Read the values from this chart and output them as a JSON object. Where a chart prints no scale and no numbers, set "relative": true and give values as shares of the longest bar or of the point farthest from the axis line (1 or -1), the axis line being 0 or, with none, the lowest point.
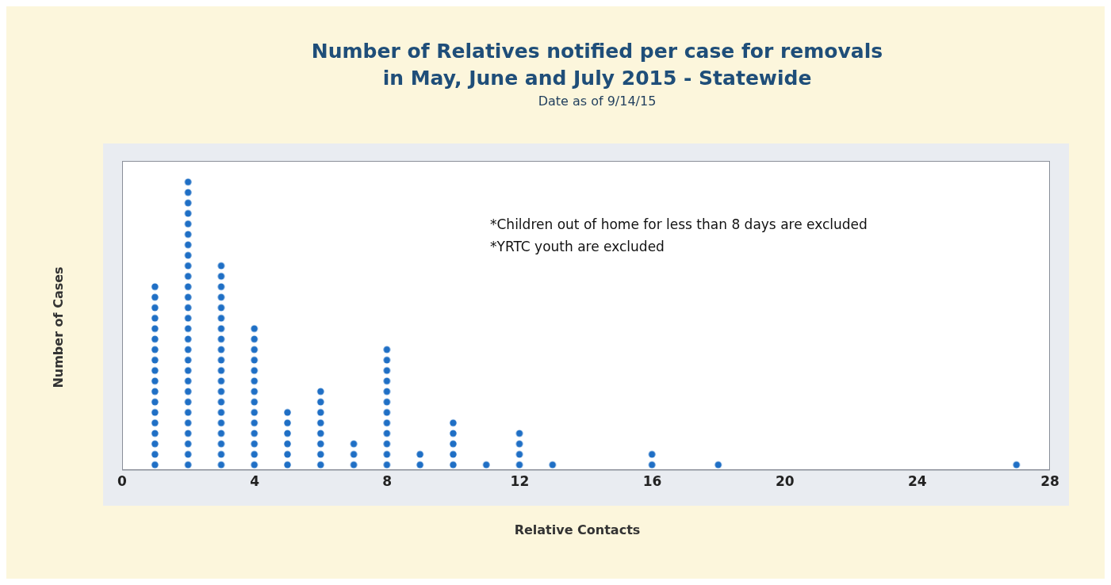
{
  "chart_data": {
    "type": "bar",
    "title": "Number of Relatives notified per case for removals\nin May, June and July 2015 - Statewide",
    "subtitle": "Date as of 9/14/15",
    "xlabel": "Relative Contacts",
    "ylabel": "Number of Cases",
    "relative": true,
    "x": [
      1,
      2,
      3,
      4,
      5,
      6,
      7,
      8,
      9,
      10,
      11,
      12,
      13,
      16,
      18,
      27
    ],
    "values": [
      0.643,
      1,
      0.714,
      0.5,
      0.214,
      0.286,
      0.107,
      0.429,
      0.071,
      0.179,
      0.036,
      0.143,
      0.036,
      0.071,
      0.036,
      0.036
    ],
    "color": "#1f6fc5",
    "xlim": [
      0,
      28
    ],
    "xticks": [
      0,
      4,
      8,
      12,
      16,
      20,
      24,
      28
    ],
    "annotations": [
      "*Children out of home for less than 8 days are excluded",
      "*YRTC youth are excluded"
    ]
  }
}
